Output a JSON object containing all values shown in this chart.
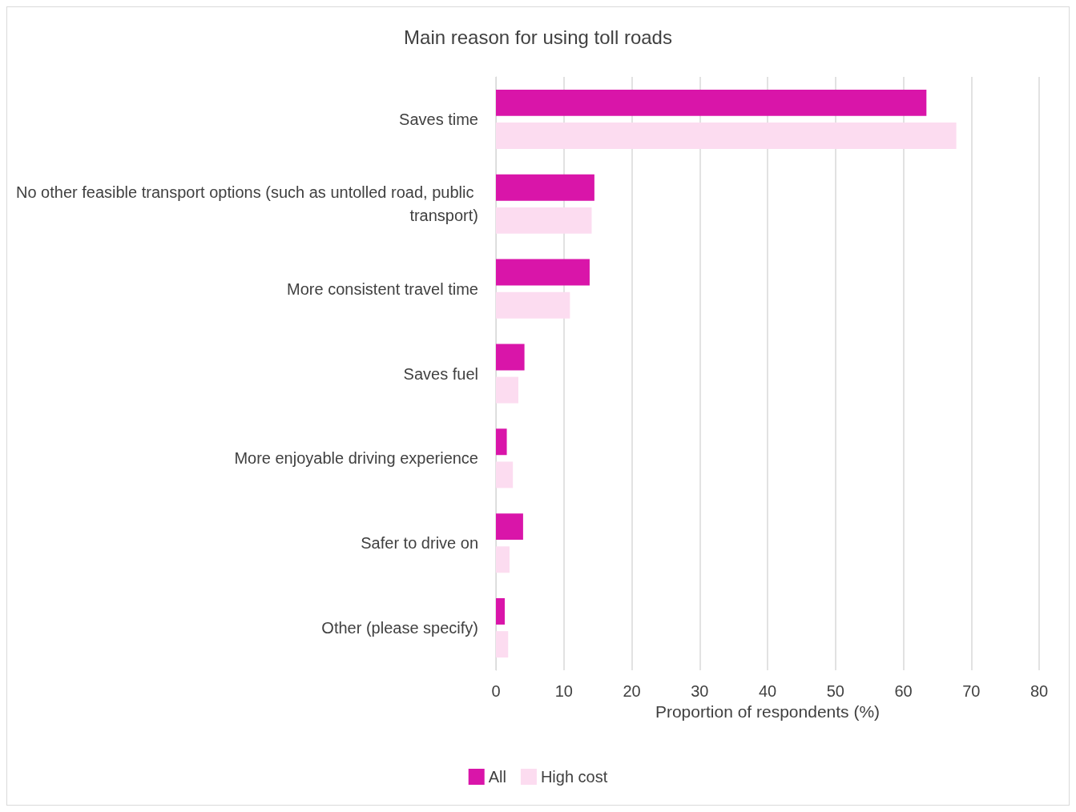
{
  "chart_data": {
    "type": "bar",
    "orientation": "horizontal",
    "title": "Main reason for using toll roads",
    "xlabel": "Proportion of respondents (%)",
    "categories": [
      "Saves time",
      "No other feasible transport options (such as untolled road, public transport)",
      "More consistent travel time",
      "Saves fuel",
      "More enjoyable driving experience",
      "Safer to drive on",
      "Other (please specify)"
    ],
    "series": [
      {
        "name": "All",
        "color": "#d915a9",
        "values": [
          63.4,
          14.5,
          13.8,
          4.2,
          1.6,
          4.0,
          1.3
        ]
      },
      {
        "name": "High cost",
        "color": "#fcdcf0",
        "values": [
          67.8,
          14.1,
          10.9,
          3.3,
          2.5,
          2.0,
          1.8
        ]
      }
    ],
    "xlim": [
      0,
      80
    ],
    "xticks": [
      0,
      10,
      20,
      30,
      40,
      50,
      60,
      70,
      80
    ],
    "grid": "x",
    "legend": "bottom"
  }
}
